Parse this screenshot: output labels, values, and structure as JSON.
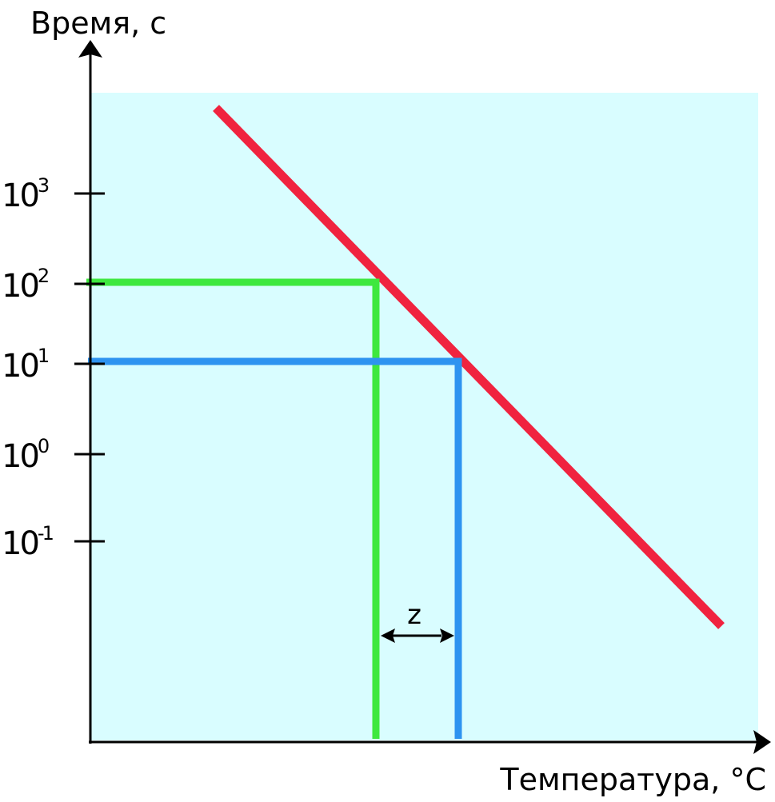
{
  "axes": {
    "y_label": "Время, с",
    "x_label": "Температура, °C"
  },
  "y_ticks": [
    {
      "base": "10",
      "exponent": "3"
    },
    {
      "base": "10",
      "exponent": "2"
    },
    {
      "base": "10",
      "exponent": "1"
    },
    {
      "base": "10",
      "exponent": "0"
    },
    {
      "base": "10",
      "exponent": "-1"
    }
  ],
  "annotation": "z"
}
